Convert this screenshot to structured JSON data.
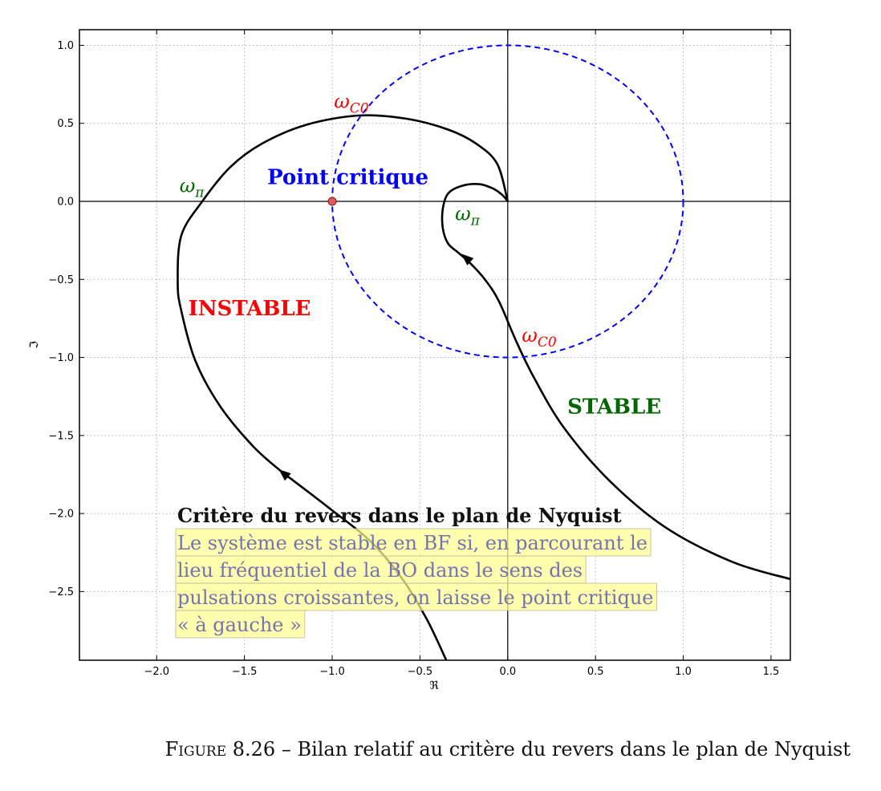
{
  "chart_data": {
    "type": "line",
    "xlabel": "ℜ",
    "ylabel": "ℑ",
    "xlim": [
      -2.44,
      1.61
    ],
    "ylim": [
      -2.94,
      1.1
    ],
    "x_ticks": [
      -2.0,
      -1.5,
      -1.0,
      -0.5,
      0.0,
      0.5,
      1.0,
      1.5
    ],
    "x_tick_labels": [
      "−2.0",
      "−1.5",
      "−1.0",
      "−0.5",
      "0.0",
      "0.5",
      "1.0",
      "1.5"
    ],
    "y_ticks": [
      1.0,
      0.5,
      0.0,
      -0.5,
      -1.0,
      -1.5,
      -2.0,
      -2.5
    ],
    "y_tick_labels": [
      "1.0",
      "0.5",
      "0.0",
      "−0.5",
      "−1.0",
      "−1.5",
      "−2.0",
      "−2.5"
    ],
    "grid": true,
    "series": [
      {
        "color": "#000000",
        "points": [
          [
            -0.35,
            -2.94
          ],
          [
            -0.46,
            -2.68
          ],
          [
            -0.6,
            -2.42
          ],
          [
            -0.78,
            -2.18
          ],
          [
            -1.0,
            -1.98
          ],
          [
            -1.22,
            -1.79
          ],
          [
            -1.28,
            -1.74
          ],
          [
            -1.45,
            -1.57
          ],
          [
            -1.64,
            -1.31
          ],
          [
            -1.78,
            -1.02
          ],
          [
            -1.86,
            -0.7
          ],
          [
            -1.88,
            -0.52
          ],
          [
            -1.86,
            -0.22
          ],
          [
            -1.74,
            0.0
          ],
          [
            -1.58,
            0.22
          ],
          [
            -1.4,
            0.37
          ],
          [
            -1.15,
            0.49
          ],
          [
            -0.85,
            0.55
          ],
          [
            -0.58,
            0.53
          ],
          [
            -0.34,
            0.46
          ],
          [
            -0.18,
            0.37
          ],
          [
            -0.06,
            0.24
          ],
          [
            0.0,
            0.0
          ]
        ]
      },
      {
        "color": "#000000",
        "points": [
          [
            1.61,
            -2.42
          ],
          [
            1.28,
            -2.31
          ],
          [
            0.9,
            -2.09
          ],
          [
            0.58,
            -1.79
          ],
          [
            0.32,
            -1.45
          ],
          [
            0.15,
            -1.13
          ],
          [
            0.05,
            -0.9
          ],
          [
            -0.05,
            -0.64
          ],
          [
            -0.13,
            -0.5
          ],
          [
            -0.21,
            -0.4
          ],
          [
            -0.28,
            -0.33
          ],
          [
            -0.34,
            -0.27
          ],
          [
            -0.37,
            -0.17
          ],
          [
            -0.37,
            -0.05
          ],
          [
            -0.34,
            0.05
          ],
          [
            -0.26,
            0.1
          ],
          [
            -0.16,
            0.11
          ],
          [
            -0.08,
            0.08
          ],
          [
            -0.03,
            0.04
          ],
          [
            0.0,
            0.0
          ]
        ]
      },
      {
        "type": "circle",
        "center": [
          0,
          0
        ],
        "radius": 1,
        "color": "#0000ff",
        "linestyle": "dashed"
      }
    ],
    "arrows": [
      [
        -1.28,
        -1.74
      ],
      [
        -0.24,
        -0.36
      ]
    ],
    "critical_point": {
      "x": -1,
      "y": 0,
      "color": "#e35a5a"
    },
    "annotations": [
      {
        "base": "ω",
        "sub": "C0",
        "x": -0.99,
        "y": 0.6,
        "color": "#ff0000"
      },
      {
        "base": "ω",
        "sub": "C0",
        "x": 0.08,
        "y": -0.9,
        "color": "#ff0000"
      },
      {
        "base": "ω",
        "sub": "π",
        "x": -1.87,
        "y": 0.06,
        "color": "#006400"
      },
      {
        "base": "ω",
        "sub": "π",
        "x": -0.3,
        "y": -0.12,
        "color": "#006400"
      },
      {
        "text": "Point critique",
        "x": -1.37,
        "y": 0.11,
        "color": "#0000ff"
      },
      {
        "text": "INSTABLE",
        "x": -1.82,
        "y": -0.73,
        "color": "#ff0000"
      },
      {
        "text": "STABLE",
        "x": 0.34,
        "y": -1.36,
        "color": "#006400"
      }
    ],
    "text_box": {
      "title": "Critère du revers dans le plan de Nyquist",
      "lines": [
        "Le système est stable en BF si, en parcourant le",
        "lieu fréquentiel de la BO dans le sens des",
        "pulsations croissantes, on laisse le point critique",
        "« à gauche »"
      ],
      "highlight_color": "#ffff8f",
      "text_color": "#6b6bb3"
    }
  },
  "caption": {
    "figure_label": "Figure 8.26",
    "text": " – Bilan relatif au critère du revers dans le plan de Nyquist"
  }
}
